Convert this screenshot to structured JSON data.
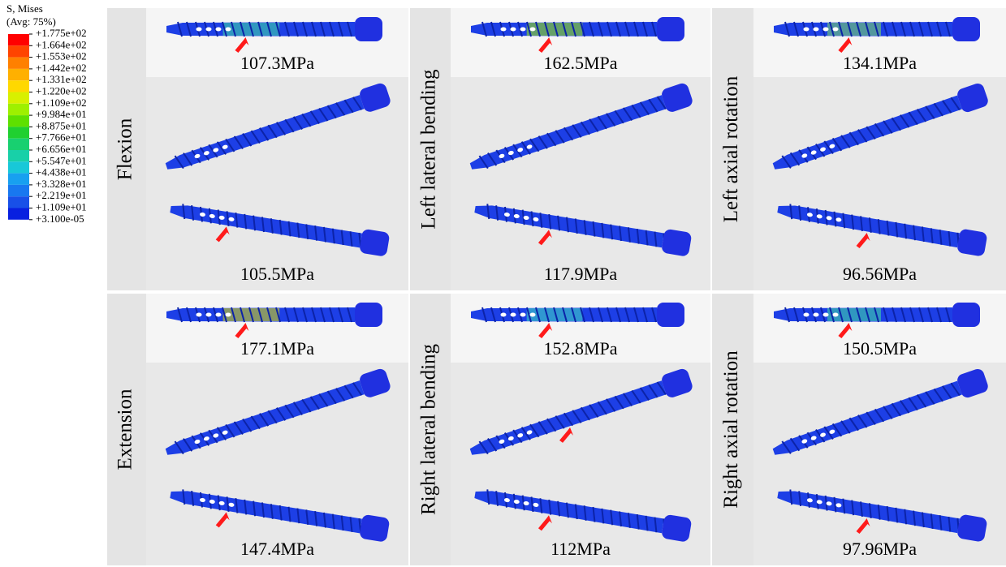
{
  "legend": {
    "title": "S, Mises",
    "subtitle": "(Avg: 75%)",
    "levels": [
      "+1.775e+02",
      "+1.664e+02",
      "+1.553e+02",
      "+1.442e+02",
      "+1.331e+02",
      "+1.220e+02",
      "+1.109e+02",
      "+9.984e+01",
      "+8.875e+01",
      "+7.766e+01",
      "+6.656e+01",
      "+5.547e+01",
      "+4.438e+01",
      "+3.328e+01",
      "+2.219e+01",
      "+1.109e+01",
      "+3.100e-05"
    ],
    "colors": [
      "#ff0000",
      "#ff4400",
      "#ff8000",
      "#ffb000",
      "#ffd800",
      "#d8f000",
      "#9ef000",
      "#5ee000",
      "#20d030",
      "#18d070",
      "#18d0a8",
      "#18c8d8",
      "#18a0f0",
      "#1878f0",
      "#1850e8",
      "#0820e0"
    ]
  },
  "panels": [
    {
      "label": "Flexion",
      "top_value": "107.3MPa",
      "bottom_value": "105.5MPa"
    },
    {
      "label": "Left lateral bending",
      "top_value": "162.5MPa",
      "bottom_value": "117.9MPa"
    },
    {
      "label": "Left axial rotation",
      "top_value": "134.1MPa",
      "bottom_value": "96.56MPa"
    },
    {
      "label": "Extension",
      "top_value": "177.1MPa",
      "bottom_value": "147.4MPa"
    },
    {
      "label": "Right lateral bending",
      "top_value": "152.8MPa",
      "bottom_value": "112MPa"
    },
    {
      "label": "Right axial rotation",
      "top_value": "150.5MPa",
      "bottom_value": "97.96MPa"
    }
  ]
}
